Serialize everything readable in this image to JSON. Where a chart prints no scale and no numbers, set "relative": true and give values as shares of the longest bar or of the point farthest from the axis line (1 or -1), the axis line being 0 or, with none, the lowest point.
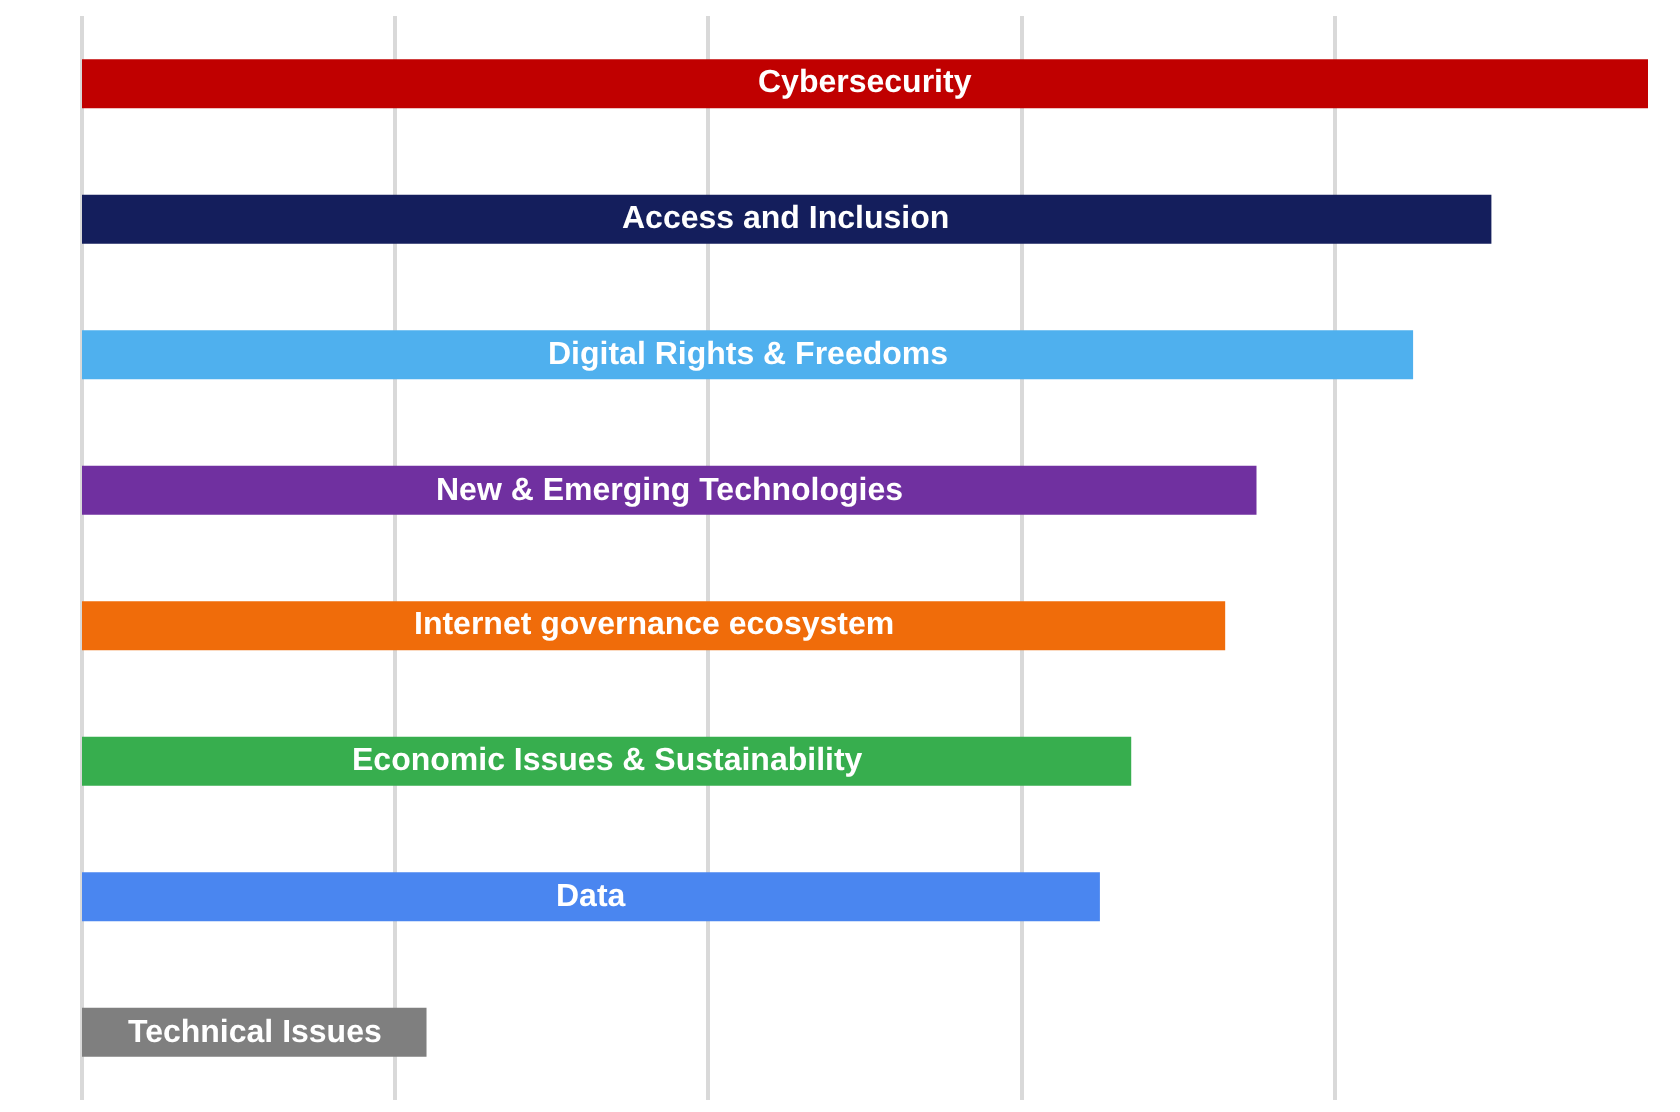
{
  "chart_data": {
    "type": "bar",
    "orientation": "horizontal",
    "relative": true,
    "grid": "x",
    "categories": [
      "Cybersecurity",
      "Access and Inclusion",
      "Digital Rights & Freedoms",
      "New & Emerging Technologies",
      "Internet governance ecosystem",
      "Economic Issues & Sustainability",
      "Data",
      "Technical Issues"
    ],
    "values": [
      1,
      0.9,
      0.85,
      0.75,
      0.73,
      0.67,
      0.65,
      0.22
    ],
    "colors": [
      "#c00000",
      "#141e5c",
      "#4fb0ee",
      "#7030a0",
      "#f06c0a",
      "#37ae4e",
      "#4a86f0",
      "#7f7f7f"
    ]
  }
}
